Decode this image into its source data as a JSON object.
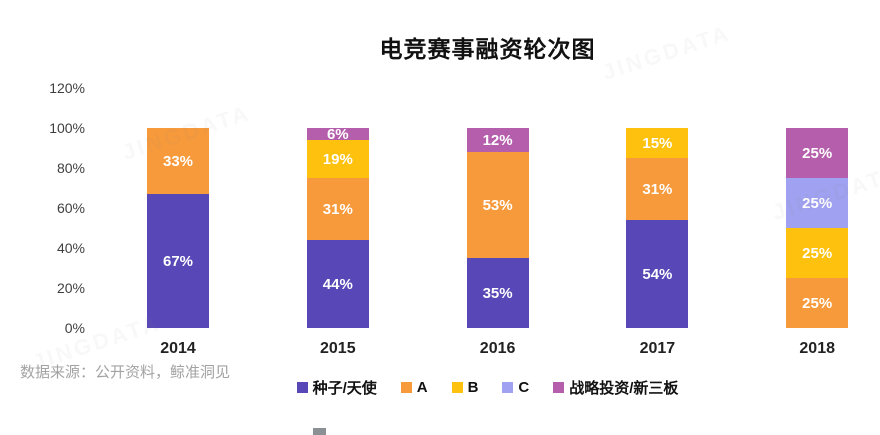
{
  "title": "电竞赛事融资轮次图",
  "source_note": "数据来源：公开资料，鲸准洞见",
  "chart_data": {
    "type": "bar",
    "stacked": true,
    "orientation": "vertical",
    "title": "电竞赛事融资轮次图",
    "categories": [
      "2014",
      "2015",
      "2016",
      "2017",
      "2018"
    ],
    "series": [
      {
        "name": "种子/天使",
        "color": "#5847B6",
        "values": [
          67,
          44,
          35,
          54,
          0
        ]
      },
      {
        "name": "A",
        "color": "#F79A3B",
        "values": [
          33,
          31,
          53,
          31,
          25
        ]
      },
      {
        "name": "B",
        "color": "#FEC10D",
        "values": [
          0,
          19,
          0,
          15,
          25
        ]
      },
      {
        "name": "C",
        "color": "#A0A1F0",
        "values": [
          0,
          0,
          0,
          0,
          25
        ]
      },
      {
        "name": "战略投资/新三板",
        "color": "#B55FAC",
        "values": [
          0,
          6,
          12,
          0,
          25
        ]
      }
    ],
    "value_label_unit": "%",
    "y_ticks": [
      "0%",
      "20%",
      "40%",
      "60%",
      "80%",
      "100%",
      "120%"
    ],
    "ylim": [
      0,
      120
    ],
    "grid": false,
    "legend_position": "bottom",
    "xlabel": "",
    "ylabel": ""
  }
}
